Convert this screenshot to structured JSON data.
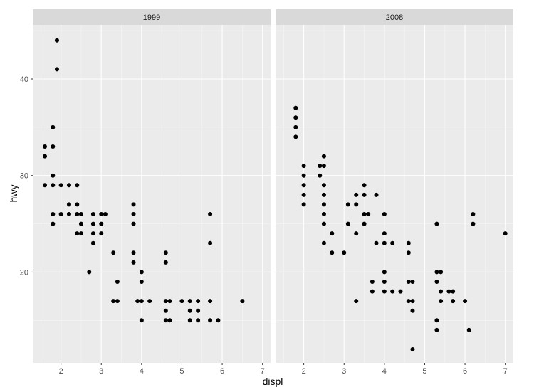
{
  "chart_data": {
    "type": "scatter",
    "xlabel": "displ",
    "ylabel": "hwy",
    "xlim": [
      1.3,
      7.2
    ],
    "ylim": [
      10.6,
      45.6
    ],
    "x_ticks": [
      2,
      3,
      4,
      5,
      6,
      7
    ],
    "y_ticks": [
      20,
      30,
      40
    ],
    "grid": true,
    "colors": {
      "panel": "#ebebeb",
      "strip": "#d9d9d9",
      "grid_major": "#ffffff",
      "grid_minor": "#f5f5f5",
      "point": "#000000"
    },
    "facets": [
      {
        "label": "1999",
        "points": [
          [
            1.6,
            33
          ],
          [
            1.6,
            32
          ],
          [
            1.6,
            29
          ],
          [
            1.8,
            29
          ],
          [
            1.8,
            33
          ],
          [
            1.8,
            35
          ],
          [
            1.8,
            30
          ],
          [
            1.8,
            26
          ],
          [
            1.8,
            25
          ],
          [
            1.9,
            44
          ],
          [
            1.9,
            41
          ],
          [
            2.0,
            29
          ],
          [
            2.0,
            26
          ],
          [
            2.2,
            29
          ],
          [
            2.2,
            27
          ],
          [
            2.2,
            26
          ],
          [
            2.4,
            29
          ],
          [
            2.4,
            27
          ],
          [
            2.4,
            26
          ],
          [
            2.4,
            24
          ],
          [
            2.5,
            26
          ],
          [
            2.5,
            25
          ],
          [
            2.5,
            24
          ],
          [
            2.7,
            20
          ],
          [
            2.8,
            26
          ],
          [
            2.8,
            25
          ],
          [
            2.8,
            24
          ],
          [
            2.8,
            23
          ],
          [
            3.0,
            26
          ],
          [
            3.0,
            25
          ],
          [
            3.0,
            24
          ],
          [
            3.1,
            26
          ],
          [
            3.3,
            22
          ],
          [
            3.3,
            17
          ],
          [
            3.4,
            19
          ],
          [
            3.4,
            17
          ],
          [
            3.8,
            27
          ],
          [
            3.8,
            26
          ],
          [
            3.8,
            25
          ],
          [
            3.8,
            22
          ],
          [
            3.8,
            21
          ],
          [
            3.9,
            17
          ],
          [
            4.0,
            20
          ],
          [
            4.0,
            19
          ],
          [
            4.0,
            17
          ],
          [
            4.0,
            15
          ],
          [
            4.2,
            17
          ],
          [
            4.6,
            22
          ],
          [
            4.6,
            21
          ],
          [
            4.6,
            17
          ],
          [
            4.6,
            16
          ],
          [
            4.6,
            15
          ],
          [
            4.7,
            17
          ],
          [
            4.7,
            15
          ],
          [
            5.0,
            17
          ],
          [
            5.2,
            17
          ],
          [
            5.2,
            16
          ],
          [
            5.2,
            15
          ],
          [
            5.4,
            17
          ],
          [
            5.4,
            16
          ],
          [
            5.4,
            15
          ],
          [
            5.7,
            26
          ],
          [
            5.7,
            23
          ],
          [
            5.7,
            17
          ],
          [
            5.7,
            15
          ],
          [
            5.9,
            15
          ],
          [
            6.5,
            17
          ]
        ]
      },
      {
        "label": "2008",
        "points": [
          [
            1.8,
            37
          ],
          [
            1.8,
            36
          ],
          [
            1.8,
            35
          ],
          [
            1.8,
            34
          ],
          [
            2.0,
            31
          ],
          [
            2.0,
            30
          ],
          [
            2.0,
            29
          ],
          [
            2.0,
            28
          ],
          [
            2.0,
            27
          ],
          [
            2.4,
            31
          ],
          [
            2.4,
            30
          ],
          [
            2.5,
            32
          ],
          [
            2.5,
            31
          ],
          [
            2.5,
            29
          ],
          [
            2.5,
            28
          ],
          [
            2.5,
            27
          ],
          [
            2.5,
            26
          ],
          [
            2.5,
            25
          ],
          [
            2.5,
            23
          ],
          [
            2.7,
            24
          ],
          [
            2.7,
            22
          ],
          [
            3.0,
            22
          ],
          [
            3.1,
            27
          ],
          [
            3.1,
            25
          ],
          [
            3.3,
            28
          ],
          [
            3.3,
            27
          ],
          [
            3.3,
            24
          ],
          [
            3.3,
            17
          ],
          [
            3.5,
            29
          ],
          [
            3.5,
            28
          ],
          [
            3.5,
            26
          ],
          [
            3.5,
            25
          ],
          [
            3.6,
            26
          ],
          [
            3.7,
            19
          ],
          [
            3.7,
            18
          ],
          [
            3.8,
            28
          ],
          [
            3.8,
            23
          ],
          [
            4.0,
            26
          ],
          [
            4.0,
            24
          ],
          [
            4.0,
            23
          ],
          [
            4.0,
            20
          ],
          [
            4.0,
            19
          ],
          [
            4.0,
            18
          ],
          [
            4.2,
            23
          ],
          [
            4.2,
            18
          ],
          [
            4.4,
            18
          ],
          [
            4.6,
            23
          ],
          [
            4.6,
            22
          ],
          [
            4.6,
            19
          ],
          [
            4.6,
            17
          ],
          [
            4.7,
            19
          ],
          [
            4.7,
            17
          ],
          [
            4.7,
            16
          ],
          [
            4.7,
            12
          ],
          [
            5.3,
            25
          ],
          [
            5.3,
            20
          ],
          [
            5.3,
            19
          ],
          [
            5.3,
            15
          ],
          [
            5.3,
            14
          ],
          [
            5.4,
            20
          ],
          [
            5.4,
            18
          ],
          [
            5.4,
            17
          ],
          [
            5.6,
            18
          ],
          [
            5.7,
            18
          ],
          [
            5.7,
            17
          ],
          [
            6.0,
            17
          ],
          [
            6.1,
            14
          ],
          [
            6.2,
            26
          ],
          [
            6.2,
            25
          ],
          [
            7.0,
            24
          ]
        ]
      }
    ]
  }
}
